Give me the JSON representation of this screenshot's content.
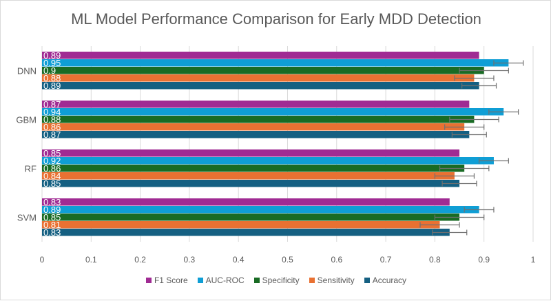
{
  "chart_data": {
    "type": "bar",
    "orientation": "horizontal",
    "title": "ML Model Performance Comparison for Early MDD Detection",
    "categories": [
      "DNN",
      "GBM",
      "RF",
      "SVM"
    ],
    "xlim": [
      0,
      1
    ],
    "xticks": [
      "0",
      "0.1",
      "0.2",
      "0.3",
      "0.4",
      "0.5",
      "0.6",
      "0.7",
      "0.8",
      "0.9",
      "1"
    ],
    "grid": true,
    "legend_position": "bottom",
    "series": [
      {
        "name": "F1 Score",
        "color": "#A02B93",
        "values": [
          0.89,
          0.87,
          0.85,
          0.83
        ],
        "error": null
      },
      {
        "name": "AUC-ROC",
        "color": "#0F9ED5",
        "values": [
          0.95,
          0.94,
          0.92,
          0.89
        ],
        "error": 0.03
      },
      {
        "name": "Specificity",
        "color": "#196B24",
        "values": [
          0.9,
          0.88,
          0.86,
          0.85
        ],
        "error": 0.05
      },
      {
        "name": "Sensitivity",
        "color": "#E97132",
        "values": [
          0.88,
          0.86,
          0.84,
          0.81
        ],
        "error": 0.04
      },
      {
        "name": "Accuracy",
        "color": "#156082",
        "values": [
          0.89,
          0.87,
          0.85,
          0.83
        ],
        "error": 0.035
      }
    ]
  }
}
